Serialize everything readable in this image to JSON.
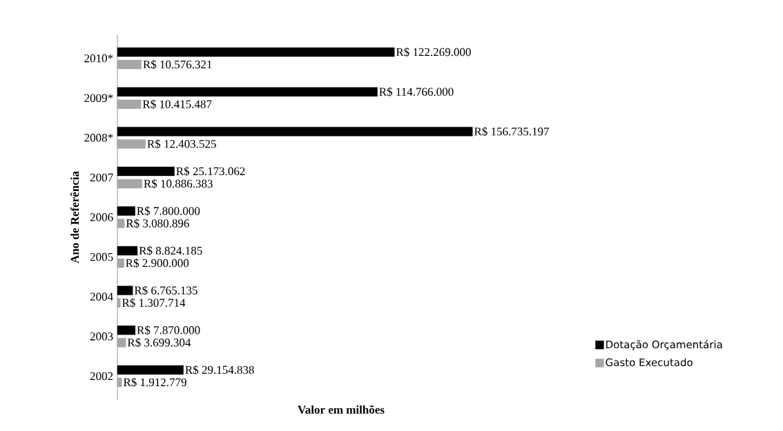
{
  "chart_data": {
    "type": "bar",
    "orientation": "horizontal",
    "xlabel": "Valor em milhões",
    "ylabel": "Ano de Referência",
    "categories": [
      "2010*",
      "2009*",
      "2008*",
      "2007",
      "2006",
      "2005",
      "2004",
      "2003",
      "2002"
    ],
    "series": [
      {
        "name": "Dotação Orçamentária",
        "color": "#000000",
        "values": [
          122269000,
          114766000,
          156735197,
          25173062,
          7800000,
          8824185,
          6765135,
          7870000,
          29154838
        ],
        "value_labels": [
          "R$ 122.269.000",
          "R$ 114.766.000",
          "R$ 156.735.197",
          "R$ 25.173.062",
          "R$ 7.800.000",
          "R$ 8.824.185",
          "R$ 6.765.135",
          "R$ 7.870.000",
          "R$ 29.154.838"
        ]
      },
      {
        "name": "Gasto Executado",
        "color": "#a6a6a6",
        "values": [
          10576321,
          10415487,
          12403525,
          10886383,
          3080896,
          2900000,
          1307714,
          3699304,
          1912779
        ],
        "value_labels": [
          "R$ 10.576.321",
          "R$ 10.415.487",
          "R$ 12.403.525",
          "R$ 10.886.383",
          "R$ 3.080.896",
          "R$ 2.900.000",
          "R$ 1.307.714",
          "R$ 3.699.304",
          "R$ 1.912.779"
        ]
      }
    ],
    "legend": "bottom right"
  }
}
